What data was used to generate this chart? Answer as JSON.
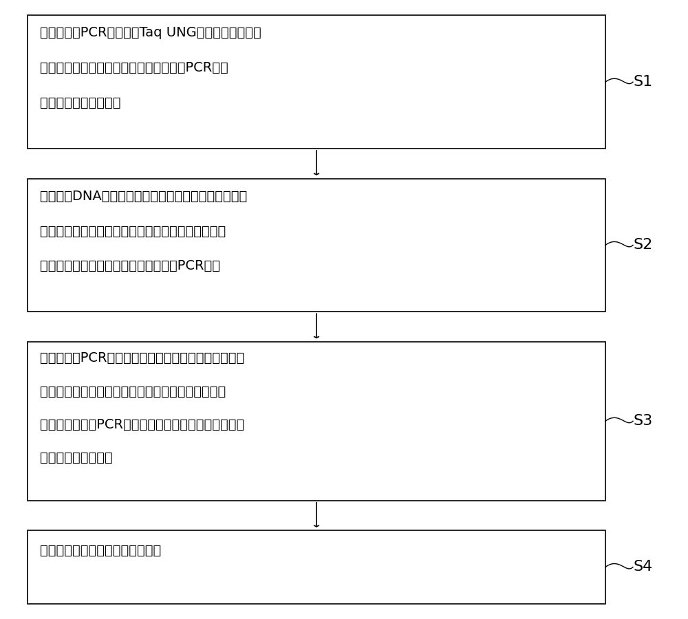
{
  "background_color": "#ffffff",
  "box_border_color": "#000000",
  "box_fill_color": "#ffffff",
  "arrow_color": "#000000",
  "label_color": "#000000",
  "steps": [
    {
      "id": "S1",
      "lines": [
        "取一定量的PCR反应液、Taq UNG酶加入一个离心管",
        "中振荡混匀，瞬时离心后，分装到复数管PCR反应",
        "液管中，盖上管盖备用"
      ]
    },
    {
      "id": "S2",
      "lines": [
        "制备待测DNA样本、阴性对照样本和阳性对照样本，并",
        "将制备好的待测样本、阳性对照样本和阴性对照样本",
        "瞬时离心后、干浴、离心，上清液用于PCR扩增"
      ]
    },
    {
      "id": "S3",
      "lines": [
        "向准备好的PCR反应液管中分别加入上清液待测样品、",
        "阴性对照样品、阳性对照样品，盖紧管盖后瞬时离心",
        "后，将其放置于PCR仪上，编辑样本信息按照相应的循",
        "环参数进行扩增反应"
      ]
    },
    {
      "id": "S4",
      "lines": [
        "根据相应的质控标准分析检测结果"
      ]
    }
  ],
  "font_size": 14,
  "label_font_size": 16,
  "fig_width": 10.0,
  "fig_height": 9.0
}
